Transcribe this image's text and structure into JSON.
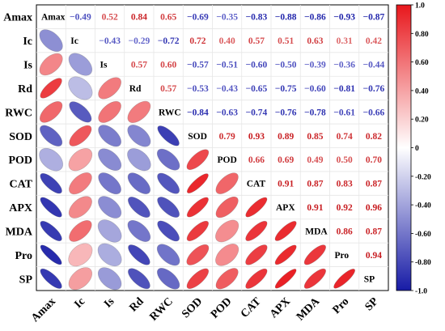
{
  "chart_data": {
    "type": "heatmap",
    "subtype": "correlation-matrix",
    "title": "",
    "variables": [
      "Amax",
      "Ic",
      "Is",
      "Rd",
      "RWC",
      "SOD",
      "POD",
      "CAT",
      "APX",
      "MDA",
      "Pro",
      "SP"
    ],
    "upper_triangle": "numeric coefficients",
    "lower_triangle": "ellipses (width and tilt encode correlation)",
    "diagonal": "variable names",
    "matrix": [
      [
        1,
        -0.49,
        0.52,
        0.84,
        0.65,
        -0.69,
        -0.35,
        -0.83,
        -0.88,
        -0.86,
        -0.93,
        -0.87
      ],
      [
        -0.49,
        1,
        -0.43,
        -0.29,
        -0.72,
        0.72,
        0.4,
        0.57,
        0.51,
        0.63,
        0.31,
        0.42
      ],
      [
        0.52,
        -0.43,
        1,
        0.57,
        0.6,
        -0.57,
        -0.51,
        -0.6,
        -0.5,
        -0.39,
        -0.36,
        -0.44
      ],
      [
        0.84,
        -0.29,
        0.57,
        1,
        0.57,
        -0.53,
        -0.43,
        -0.65,
        -0.75,
        -0.6,
        -0.81,
        -0.76
      ],
      [
        0.65,
        -0.72,
        0.6,
        0.57,
        1,
        -0.84,
        -0.63,
        -0.74,
        -0.76,
        -0.78,
        -0.61,
        -0.66
      ],
      [
        -0.69,
        0.72,
        -0.57,
        -0.53,
        -0.84,
        1,
        0.79,
        0.93,
        0.89,
        0.85,
        0.74,
        0.82
      ],
      [
        -0.35,
        0.4,
        -0.51,
        -0.43,
        -0.63,
        0.79,
        1,
        0.66,
        0.69,
        0.49,
        0.5,
        0.7
      ],
      [
        -0.83,
        0.57,
        -0.6,
        -0.65,
        -0.74,
        0.93,
        0.66,
        1,
        0.91,
        0.87,
        0.83,
        0.87
      ],
      [
        -0.88,
        0.51,
        -0.5,
        -0.75,
        -0.76,
        0.89,
        0.69,
        0.91,
        1,
        0.91,
        0.92,
        0.96
      ],
      [
        -0.86,
        0.63,
        -0.39,
        -0.6,
        -0.78,
        0.85,
        0.49,
        0.87,
        0.91,
        1,
        0.86,
        0.87
      ],
      [
        -0.93,
        0.31,
        -0.36,
        -0.81,
        -0.61,
        0.74,
        0.5,
        0.83,
        0.92,
        0.86,
        1,
        0.94
      ],
      [
        -0.87,
        0.42,
        -0.44,
        -0.76,
        -0.66,
        0.82,
        0.7,
        0.87,
        0.96,
        0.87,
        0.94,
        1
      ]
    ],
    "colorbar": {
      "range": [
        -1.0,
        1.0
      ],
      "ticks": [
        1.0,
        0.8,
        0.6,
        0.4,
        0.2,
        0.0,
        -0.2,
        -0.4,
        -0.6,
        -0.8,
        -1.0
      ],
      "tick_labels": [
        "1.0",
        "0.80",
        "0.60",
        "0.40",
        "0.20",
        "0",
        "-0.20",
        "-0.40",
        "-0.60",
        "-0.80",
        "-1.0"
      ],
      "placement": "right"
    },
    "colors": {
      "positive": "#e8171c",
      "neutral": "#ffffff",
      "negative": "#171ba6"
    }
  }
}
